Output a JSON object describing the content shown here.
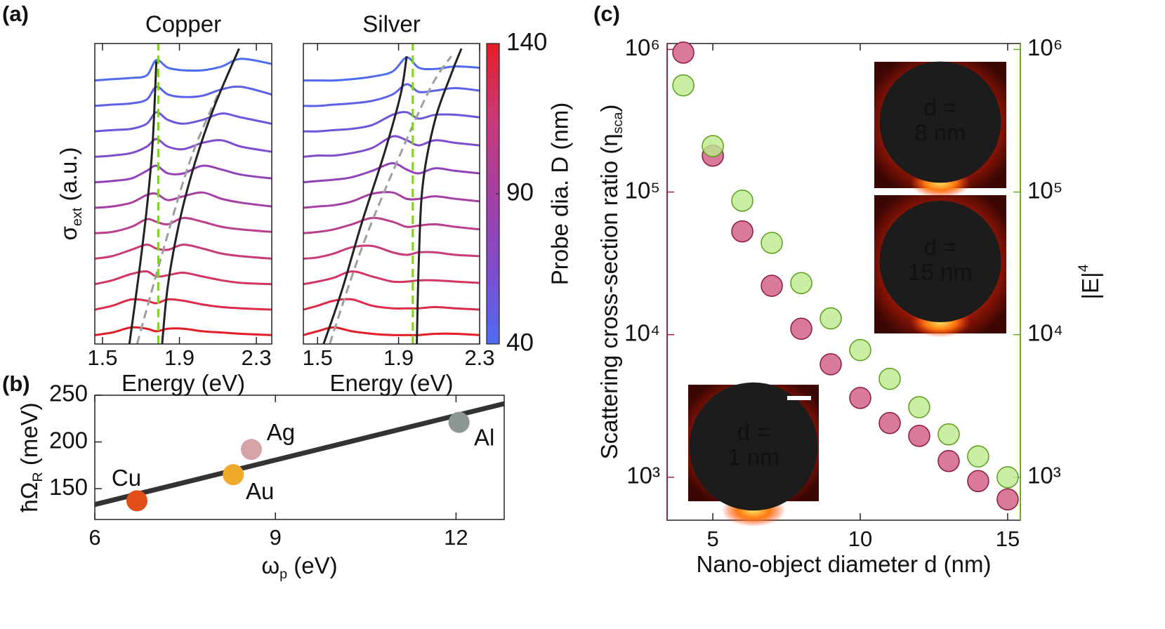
{
  "chart_data": [
    {
      "type": "line",
      "panel_label": "(a)",
      "title": "Copper",
      "xlabel": "Energy (eV)",
      "ylabel": "σ",
      "ylabel_sub": "ext",
      "ylabel_end": " (a.u.)",
      "xlim": [
        1.46,
        2.38
      ],
      "xticks": [
        1.5,
        1.9,
        2.3
      ],
      "ylim": [
        -0.3,
        11.5
      ],
      "x": [
        1.46,
        1.55,
        1.65,
        1.73,
        1.78,
        1.84,
        1.92,
        2.02,
        2.12,
        2.22,
        2.38
      ],
      "series": [
        {
          "color": "#e41e26",
          "values": [
            0.05,
            0.15,
            0.35,
            0.3,
            0.2,
            0.3,
            0.3,
            0.2,
            0.15,
            0.1,
            0.05
          ]
        },
        {
          "color": "#dd2c4a",
          "values": [
            1.05,
            1.2,
            1.45,
            1.4,
            1.3,
            1.45,
            1.4,
            1.25,
            1.15,
            1.1,
            1.05
          ]
        },
        {
          "color": "#d33662",
          "values": [
            2.05,
            2.2,
            2.45,
            2.55,
            2.35,
            2.4,
            2.5,
            2.35,
            2.2,
            2.1,
            2.05
          ]
        },
        {
          "color": "#c83a78",
          "values": [
            3.05,
            3.15,
            3.4,
            3.6,
            3.45,
            3.4,
            3.6,
            3.45,
            3.25,
            3.15,
            3.05
          ]
        },
        {
          "color": "#b93f8c",
          "values": [
            4.05,
            4.1,
            4.3,
            4.6,
            4.5,
            4.4,
            4.65,
            4.5,
            4.3,
            4.2,
            4.1
          ]
        },
        {
          "color": "#a53fa2",
          "values": [
            5.05,
            5.1,
            5.25,
            5.55,
            5.6,
            5.35,
            5.5,
            5.65,
            5.4,
            5.25,
            5.1
          ]
        },
        {
          "color": "#9242b8",
          "values": [
            6.05,
            6.1,
            6.2,
            6.5,
            6.7,
            6.4,
            6.4,
            6.7,
            6.55,
            6.35,
            6.2
          ]
        },
        {
          "color": "#7f4ccc",
          "values": [
            7.05,
            7.1,
            7.2,
            7.45,
            7.75,
            7.45,
            7.35,
            7.6,
            7.7,
            7.45,
            7.25
          ]
        },
        {
          "color": "#6c57dc",
          "values": [
            8.05,
            8.1,
            8.15,
            8.35,
            8.8,
            8.5,
            8.35,
            8.5,
            8.75,
            8.6,
            8.35
          ]
        },
        {
          "color": "#5c62e8",
          "values": [
            9.05,
            9.1,
            9.15,
            9.3,
            9.8,
            9.5,
            9.4,
            9.45,
            9.7,
            9.8,
            9.5
          ]
        },
        {
          "color": "#4f6cf0",
          "values": [
            10.05,
            10.1,
            10.15,
            10.25,
            10.85,
            10.55,
            10.45,
            10.45,
            10.6,
            10.9,
            10.7
          ]
        },
        {
          "color": "#9e9e9e",
          "dash": true,
          "x": [
            1.68,
            1.82,
            1.96,
            2.1
          ],
          "values": [
            -0.3,
            3.5,
            7,
            9.5
          ]
        },
        {
          "color": "#7ed321",
          "dash": true,
          "x": [
            1.79,
            1.79
          ],
          "values": [
            -0.3,
            11.5
          ]
        },
        {
          "color": "#222222",
          "x": [
            1.64,
            1.69,
            1.73,
            1.76,
            1.78
          ],
          "values": [
            -0.3,
            2.5,
            5,
            7.5,
            10.8
          ]
        },
        {
          "color": "#222222",
          "x": [
            1.81,
            1.84,
            1.9,
            1.98,
            2.08,
            2.21
          ],
          "values": [
            -0.3,
            2,
            4.5,
            6.8,
            9,
            11.3
          ]
        }
      ]
    },
    {
      "type": "line",
      "title": "Silver",
      "xlabel": "Energy (eV)",
      "xlim": [
        1.43,
        2.3
      ],
      "xticks": [
        1.5,
        1.9,
        2.3
      ],
      "ylim": [
        -0.3,
        11.5
      ],
      "x": [
        1.43,
        1.5,
        1.58,
        1.67,
        1.77,
        1.87,
        1.94,
        2.0,
        2.08,
        2.18,
        2.3
      ],
      "series": [
        {
          "color": "#e41e26",
          "values": [
            0.05,
            0.2,
            0.35,
            0.2,
            0.1,
            0.05,
            0.05,
            0.05,
            0.1,
            0.1,
            0.05
          ]
        },
        {
          "color": "#dd2c4a",
          "values": [
            1.05,
            1.2,
            1.4,
            1.45,
            1.2,
            1.1,
            1.1,
            1.1,
            1.15,
            1.1,
            1.05
          ]
        },
        {
          "color": "#d33662",
          "values": [
            2.05,
            2.15,
            2.3,
            2.55,
            2.35,
            2.15,
            2.15,
            2.2,
            2.2,
            2.15,
            2.1
          ]
        },
        {
          "color": "#c83a78",
          "values": [
            3.05,
            3.1,
            3.25,
            3.5,
            3.55,
            3.3,
            3.2,
            3.3,
            3.3,
            3.2,
            3.15
          ]
        },
        {
          "color": "#b93f8c",
          "values": [
            4.05,
            4.1,
            4.2,
            4.4,
            4.65,
            4.5,
            4.3,
            4.35,
            4.4,
            4.3,
            4.2
          ]
        },
        {
          "color": "#a53fa2",
          "values": [
            5.05,
            5.1,
            5.15,
            5.3,
            5.6,
            5.65,
            5.4,
            5.4,
            5.5,
            5.4,
            5.3
          ]
        },
        {
          "color": "#9242b8",
          "values": [
            6.05,
            6.1,
            6.15,
            6.25,
            6.5,
            6.8,
            6.55,
            6.4,
            6.6,
            6.5,
            6.4
          ]
        },
        {
          "color": "#7f4ccc",
          "values": [
            7.05,
            7.1,
            7.1,
            7.2,
            7.4,
            7.85,
            7.7,
            7.5,
            7.7,
            7.6,
            7.5
          ]
        },
        {
          "color": "#6c57dc",
          "values": [
            8.05,
            8.05,
            8.1,
            8.15,
            8.3,
            8.7,
            8.8,
            8.55,
            8.7,
            8.7,
            8.6
          ]
        },
        {
          "color": "#5c62e8",
          "values": [
            9.05,
            9.05,
            9.1,
            9.15,
            9.25,
            9.5,
            9.9,
            9.6,
            9.65,
            9.75,
            9.65
          ]
        },
        {
          "color": "#4f6cf0",
          "values": [
            10.05,
            10.05,
            10.05,
            10.1,
            10.2,
            10.4,
            10.95,
            10.55,
            10.5,
            10.6,
            10.55
          ]
        },
        {
          "color": "#9e9e9e",
          "dash": true,
          "x": [
            1.56,
            1.72,
            1.9,
            2.06,
            2.16
          ],
          "values": [
            -0.3,
            3.5,
            7,
            9.8,
            11
          ]
        },
        {
          "color": "#7ed321",
          "dash": true,
          "x": [
            1.97,
            1.97
          ],
          "values": [
            -0.3,
            11.5
          ]
        },
        {
          "color": "#222222",
          "x": [
            1.53,
            1.62,
            1.72,
            1.83,
            1.91,
            1.94
          ],
          "values": [
            -0.3,
            1.8,
            4.5,
            7.2,
            9.5,
            11
          ]
        },
        {
          "color": "#222222",
          "x": [
            1.99,
            2.0,
            2.02,
            2.08,
            2.16,
            2.21
          ],
          "values": [
            -0.3,
            3,
            6,
            8.5,
            10.3,
            11.3
          ]
        }
      ]
    },
    {
      "type": "colorbar",
      "ylabel": "Probe dia. D (nm)",
      "ylim": [
        40,
        140
      ],
      "yticks": [
        40,
        90,
        140
      ],
      "colors": [
        "#4f6cf0",
        "#7f4ccc",
        "#a53fa2",
        "#c83a78",
        "#e41e26"
      ]
    },
    {
      "type": "scatter",
      "panel_label": "(b)",
      "xlabel": "ω",
      "xlabel_sub": "p",
      "xlabel_end": " (eV)",
      "ylabel": "ħΩ",
      "ylabel_sub": "R",
      "ylabel_end": " (meV)",
      "xlim": [
        6,
        12.8
      ],
      "xticks": [
        6,
        9,
        12
      ],
      "ylim": [
        117,
        250
      ],
      "yticks": [
        150,
        200,
        250
      ],
      "categories": [
        "Cu",
        "Au",
        "Ag",
        "Al"
      ],
      "x": [
        6.7,
        8.3,
        8.6,
        12.05
      ],
      "values": [
        137,
        165,
        192,
        221
      ],
      "colors": [
        "#e2501a",
        "#f0aa2a",
        "#d6a3a6",
        "#8c9694"
      ],
      "fit": {
        "x": [
          6,
          12.8
        ],
        "values": [
          133,
          241
        ],
        "color": "#333333"
      }
    },
    {
      "type": "scatter",
      "panel_label": "(c)",
      "xlabel": "Nano-object diameter d (nm)",
      "ylabel": "Scattering cross-section ratio (η",
      "ylabel_sub": "sca",
      "ylabel_end": ")",
      "y2label": "|E|",
      "y2label_sup": "4",
      "xlim": [
        3.45,
        15.43
      ],
      "xticks": [
        5,
        10,
        15
      ],
      "ylim": [
        500,
        1100000
      ],
      "ylog": true,
      "yticks": [
        {
          "value": 1000,
          "label": "10³"
        },
        {
          "value": 10000,
          "label": "10⁴"
        },
        {
          "value": 100000,
          "label": "10⁵"
        },
        {
          "value": 1000000,
          "label": "10⁶"
        }
      ],
      "y2lim": [
        500,
        1100000
      ],
      "y2log": true,
      "y2ticks": [
        {
          "value": 1000,
          "label": "10³"
        },
        {
          "value": 10000,
          "label": "10⁴"
        },
        {
          "value": 100000,
          "label": "10⁵"
        },
        {
          "value": 1000000,
          "label": "10⁶"
        }
      ],
      "ycolor": "#a3203f",
      "y2color": "#6aab2c",
      "x": [
        4,
        5,
        6,
        7,
        8,
        9,
        10,
        11,
        12,
        13,
        14,
        15
      ],
      "series": [
        {
          "color": "#d97a9c",
          "edgecolor": "#8b1a3a",
          "values": [
            950000,
            180000,
            53000,
            22000,
            11000,
            6200,
            3600,
            2400,
            1950,
            1300,
            940,
            700
          ]
        },
        {
          "color": "#bdea8c",
          "edgecolor": "#5a9e1a",
          "axis": "y2",
          "alpha": 0.8,
          "values": [
            560000,
            210000,
            87000,
            44000,
            23000,
            13000,
            7800,
            4900,
            3100,
            2000,
            1400,
            1000
          ]
        }
      ],
      "insets": [
        {
          "lines": [
            "d =",
            "8 nm"
          ]
        },
        {
          "lines": [
            "d =",
            "15 nm"
          ]
        },
        {
          "lines": [
            "d =",
            "1 nm"
          ]
        }
      ]
    }
  ]
}
